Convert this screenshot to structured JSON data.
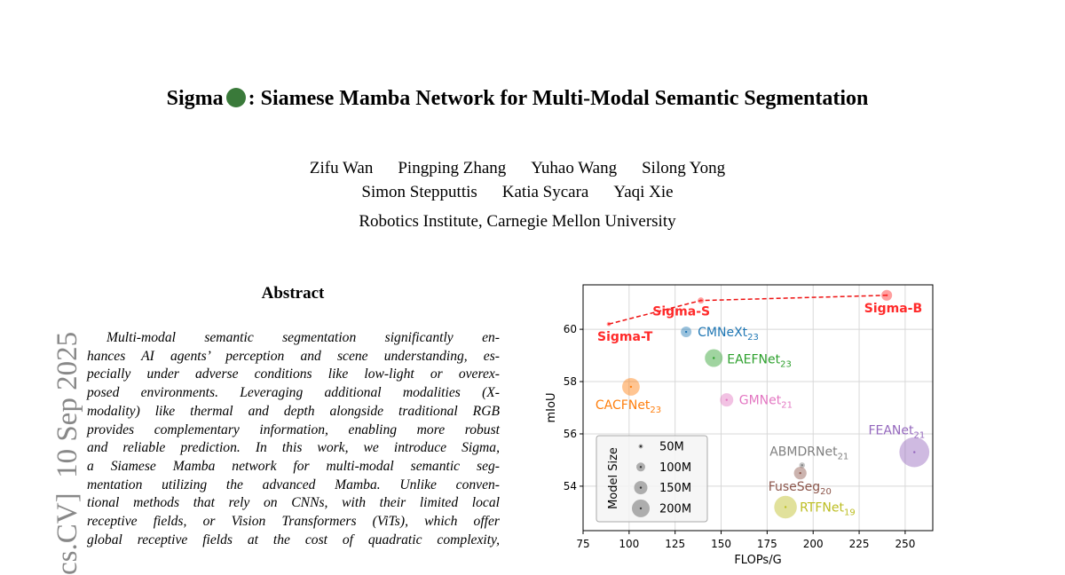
{
  "side_label": "cs.CV]  10 Sep 2025",
  "title": {
    "before_icon": "Sigma",
    "after_icon": ": Siamese Mamba Network for Multi-Modal Semantic Segmentation"
  },
  "authors": [
    [
      "Zifu Wan",
      "Pingping Zhang",
      "Yuhao Wang",
      "Silong Yong"
    ],
    [
      "Simon Stepputtis",
      "Katia Sycara",
      "Yaqi Xie"
    ]
  ],
  "affiliation": "Robotics Institute, Carnegie Mellon University",
  "abstract": {
    "heading": "Abstract",
    "lines": [
      "Multi-modal semantic segmentation significantly en-",
      "hances AI agents’ perception and scene understanding, es-",
      "pecially under adverse conditions like low-light or overex-",
      "posed environments. Leveraging additional modalities (X-",
      "modality) like thermal and depth alongside traditional RGB",
      "provides complementary information, enabling more robust",
      "and reliable prediction. In this work, we introduce Sigma,",
      "a Siamese Mamba network for multi-modal semantic seg-",
      "mentation utilizing the advanced Mamba. Unlike conven-",
      "tional methods that rely on CNNs, with their limited local",
      "receptive fields, or Vision Transformers (ViTs), which offer",
      "global receptive fields at the cost of quadratic complexity,"
    ]
  },
  "chart_data": {
    "type": "bubble",
    "xlabel": "FLOPs/G",
    "ylabel": "mIoU",
    "xlim": [
      75,
      265
    ],
    "ylim": [
      52.3,
      61.7
    ],
    "xticks": [
      75,
      100,
      125,
      150,
      175,
      200,
      225,
      250
    ],
    "yticks": [
      54,
      56,
      58,
      60
    ],
    "grid": true,
    "legend": {
      "title": "Model Size",
      "position": "lower left",
      "sizes": [
        {
          "value": 50,
          "label": "50M"
        },
        {
          "value": 100,
          "label": "100M"
        },
        {
          "value": 150,
          "label": "150M"
        },
        {
          "value": 200,
          "label": "200M"
        }
      ]
    },
    "points": [
      {
        "label": "Sigma-T",
        "x": 89,
        "y": 60.2,
        "size": 48,
        "color": "#ff2a2a"
      },
      {
        "label": "Sigma-S",
        "x": 139,
        "y": 61.1,
        "size": 70,
        "color": "#ff2a2a"
      },
      {
        "label": "Sigma-B",
        "x": 240,
        "y": 61.3,
        "size": 121,
        "color": "#ff2a2a"
      },
      {
        "label": "CMNeXt",
        "sub": "23",
        "x": 131,
        "y": 59.9,
        "size": 120,
        "color": "#1f77b4"
      },
      {
        "label": "EAEFNet",
        "sub": "23",
        "x": 146,
        "y": 58.9,
        "size": 200,
        "color": "#2ca02c"
      },
      {
        "label": "CACFNet",
        "sub": "23",
        "x": 101,
        "y": 57.8,
        "size": 198,
        "color": "#ff7f0e"
      },
      {
        "label": "GMNet",
        "sub": "21",
        "x": 153,
        "y": 57.3,
        "size": 150,
        "color": "#e377c2"
      },
      {
        "label": "FEANet",
        "sub": "21",
        "x": 255,
        "y": 55.3,
        "size": 337,
        "color": "#9467bd"
      },
      {
        "label": "ABMDRNet",
        "sub": "21",
        "x": 194,
        "y": 54.8,
        "size": 65,
        "color": "#7f7f7f"
      },
      {
        "label": "FuseSeg",
        "sub": "20",
        "x": 193,
        "y": 54.5,
        "size": 142,
        "color": "#8c564b"
      },
      {
        "label": "RTFNet",
        "sub": "19",
        "x": 185,
        "y": 53.2,
        "size": 255,
        "color": "#bcbd22"
      }
    ]
  }
}
